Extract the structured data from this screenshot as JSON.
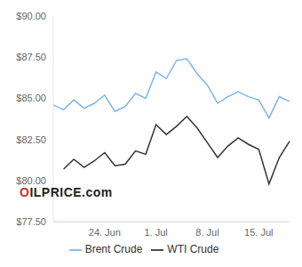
{
  "chart_data": {
    "type": "line",
    "categories": [
      null,
      null,
      null,
      null,
      null,
      "24. Jun",
      null,
      null,
      null,
      null,
      "1. Jul",
      null,
      null,
      null,
      null,
      "8. Jul",
      null,
      null,
      null,
      null,
      "15. Jul",
      null,
      null,
      null
    ],
    "series": [
      {
        "name": "Brent Crude",
        "color": "#7cb5ec",
        "values": [
          84.6,
          84.3,
          84.9,
          84.4,
          84.7,
          85.2,
          84.2,
          84.5,
          85.3,
          85.0,
          86.6,
          86.2,
          87.3,
          87.4,
          86.5,
          85.8,
          84.7,
          85.1,
          85.4,
          85.1,
          84.9,
          83.8,
          85.1,
          84.8
        ]
      },
      {
        "name": "WTI Crude",
        "color": "#333333",
        "values": [
          null,
          80.7,
          81.3,
          80.8,
          81.2,
          81.7,
          80.9,
          81.0,
          81.8,
          81.6,
          83.4,
          82.8,
          83.3,
          83.9,
          83.2,
          82.3,
          81.4,
          82.1,
          82.6,
          82.2,
          81.9,
          79.8,
          81.4,
          82.4
        ]
      }
    ],
    "ylim": [
      77.5,
      90
    ],
    "yticks": [
      {
        "value": 77.5,
        "label": "$77.50"
      },
      {
        "value": 80,
        "label": "$80.00"
      },
      {
        "value": 82.5,
        "label": "$82.50"
      },
      {
        "value": 85,
        "label": "$85.00"
      },
      {
        "value": 87.5,
        "label": "$87.50"
      },
      {
        "value": 90,
        "label": "$90.00"
      }
    ],
    "grid": false,
    "legend": "bottom",
    "annotations": [
      "OILPRICE.com"
    ]
  }
}
